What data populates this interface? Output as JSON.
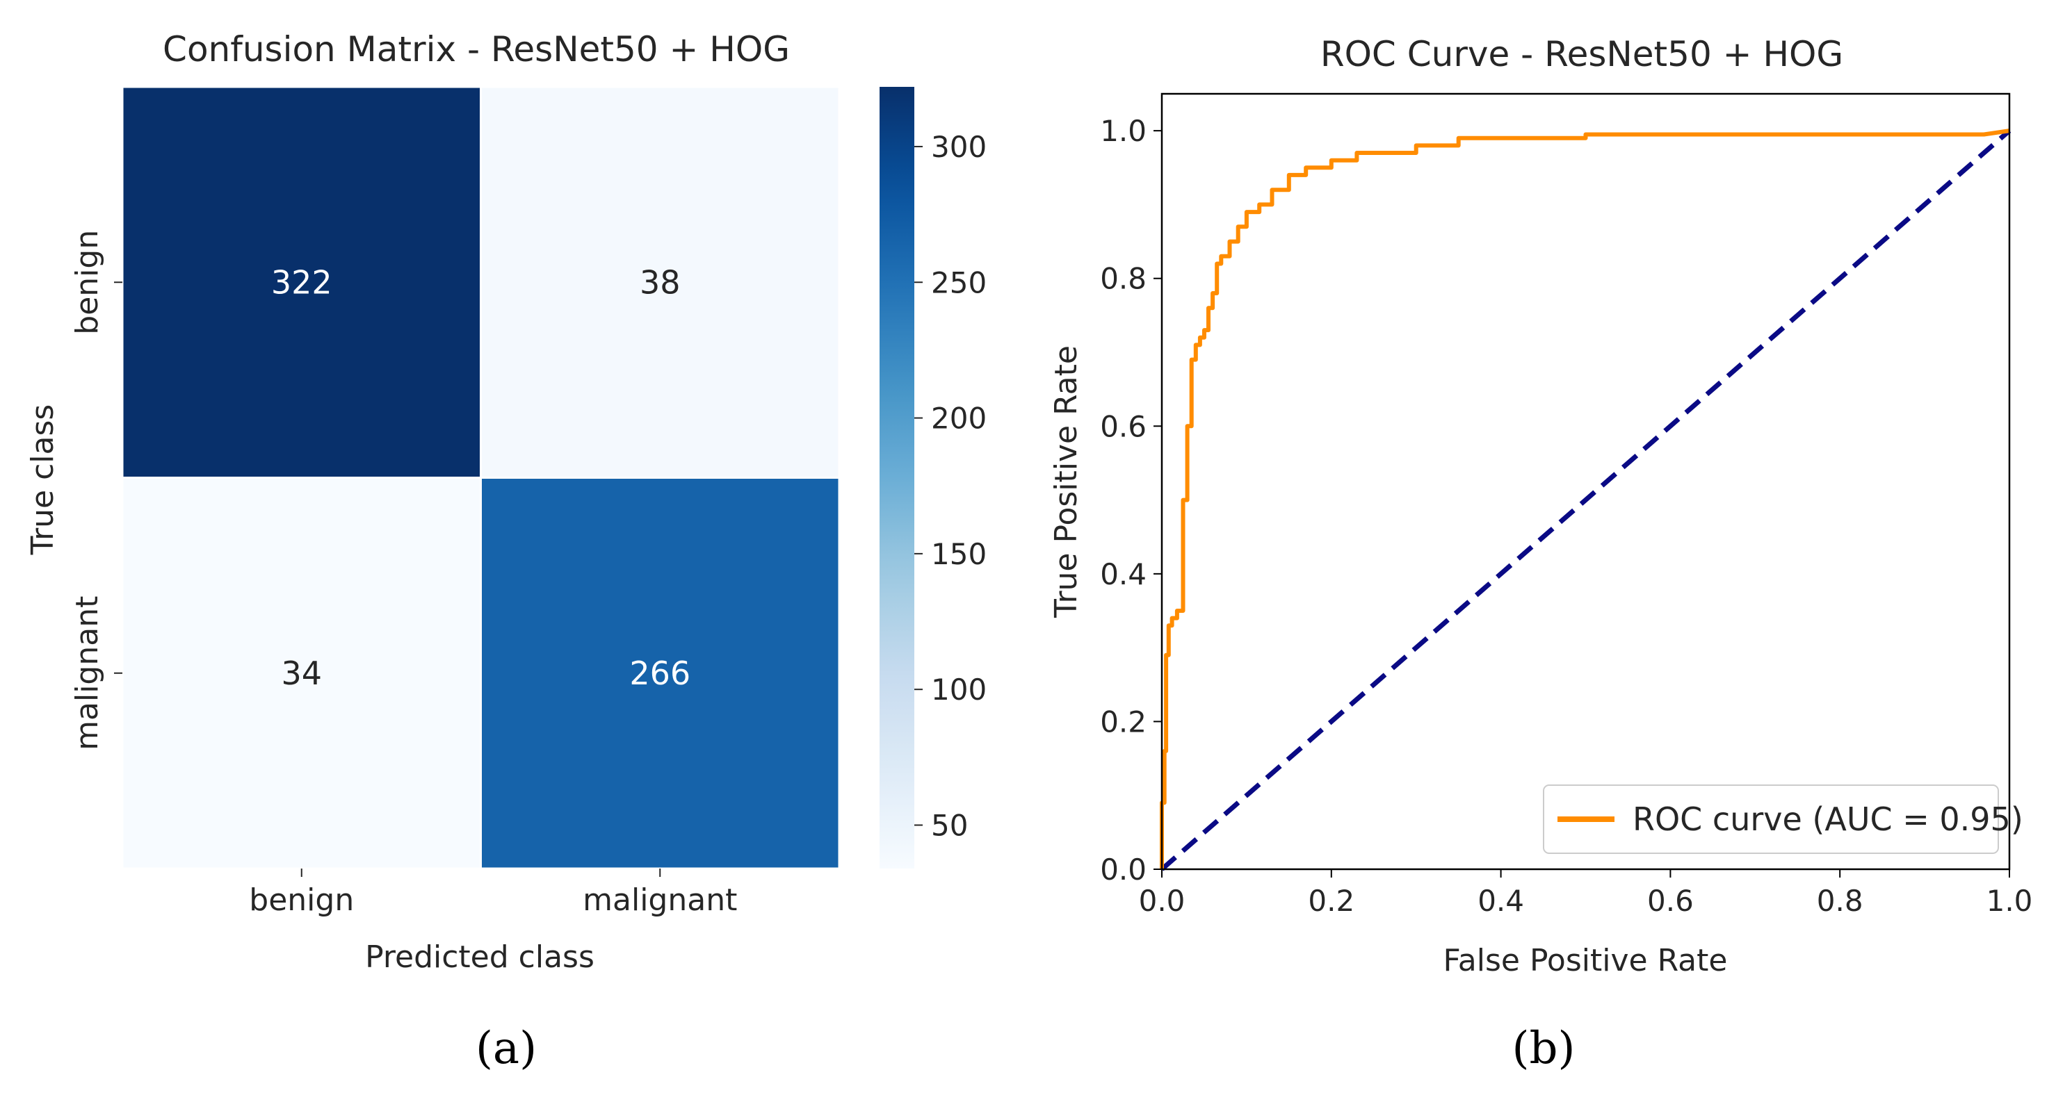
{
  "panels": {
    "a": "(a)",
    "b": "(b)"
  },
  "chart_data": [
    {
      "type": "heatmap",
      "title": "Confusion Matrix - ResNet50 + HOG",
      "xlabel": "Predicted class",
      "ylabel": "True class",
      "x_categories": [
        "benign",
        "malignant"
      ],
      "y_categories": [
        "benign",
        "malignant"
      ],
      "values": [
        [
          322,
          38
        ],
        [
          34,
          266
        ]
      ],
      "colormap": "Blues",
      "colorbar": {
        "range": [
          34,
          322
        ],
        "ticks": [
          50,
          100,
          150,
          200,
          250,
          300
        ],
        "tick_labels": [
          "50",
          "100",
          "150",
          "200",
          "250",
          "300"
        ]
      }
    },
    {
      "type": "line",
      "title": "ROC Curve - ResNet50 + HOG",
      "xlabel": "False Positive Rate",
      "ylabel": "True Positive Rate",
      "xlim": [
        0,
        1
      ],
      "ylim": [
        0,
        1.05
      ],
      "x_ticks": [
        0,
        0.2,
        0.4,
        0.6,
        0.8,
        1.0
      ],
      "x_tick_labels": [
        "0.0",
        "0.2",
        "0.4",
        "0.6",
        "0.8",
        "1.0"
      ],
      "y_ticks": [
        0,
        0.2,
        0.4,
        0.6,
        0.8,
        1.0
      ],
      "y_tick_labels": [
        "0.0",
        "0.2",
        "0.4",
        "0.6",
        "0.8",
        "1.0"
      ],
      "legend_position": "lower-right",
      "series": [
        {
          "name": "ROC curve (AUC = 0.95)",
          "color": "#ff8c00",
          "style": "solid",
          "in_legend": true,
          "x": [
            0,
            0,
            0.003,
            0.003,
            0.005,
            0.005,
            0.008,
            0.008,
            0.012,
            0.012,
            0.018,
            0.018,
            0.025,
            0.025,
            0.03,
            0.03,
            0.035,
            0.035,
            0.04,
            0.04,
            0.045,
            0.045,
            0.05,
            0.05,
            0.055,
            0.055,
            0.06,
            0.06,
            0.065,
            0.065,
            0.07,
            0.07,
            0.08,
            0.08,
            0.09,
            0.09,
            0.1,
            0.1,
            0.115,
            0.115,
            0.13,
            0.13,
            0.15,
            0.15,
            0.17,
            0.17,
            0.2,
            0.2,
            0.23,
            0.23,
            0.3,
            0.3,
            0.35,
            0.35,
            0.5,
            0.5,
            0.97,
            1.0
          ],
          "y": [
            0,
            0.09,
            0.09,
            0.16,
            0.16,
            0.29,
            0.29,
            0.33,
            0.33,
            0.34,
            0.34,
            0.35,
            0.35,
            0.5,
            0.5,
            0.6,
            0.6,
            0.69,
            0.69,
            0.71,
            0.71,
            0.72,
            0.72,
            0.73,
            0.73,
            0.76,
            0.76,
            0.78,
            0.78,
            0.82,
            0.82,
            0.83,
            0.83,
            0.85,
            0.85,
            0.87,
            0.87,
            0.89,
            0.89,
            0.9,
            0.9,
            0.92,
            0.92,
            0.94,
            0.94,
            0.95,
            0.95,
            0.96,
            0.96,
            0.97,
            0.97,
            0.98,
            0.98,
            0.99,
            0.99,
            0.995,
            0.995,
            1.0
          ]
        },
        {
          "name": "chance",
          "color": "#0a0a85",
          "style": "dashed",
          "in_legend": false,
          "x": [
            0,
            1
          ],
          "y": [
            0,
            1
          ]
        }
      ]
    }
  ]
}
